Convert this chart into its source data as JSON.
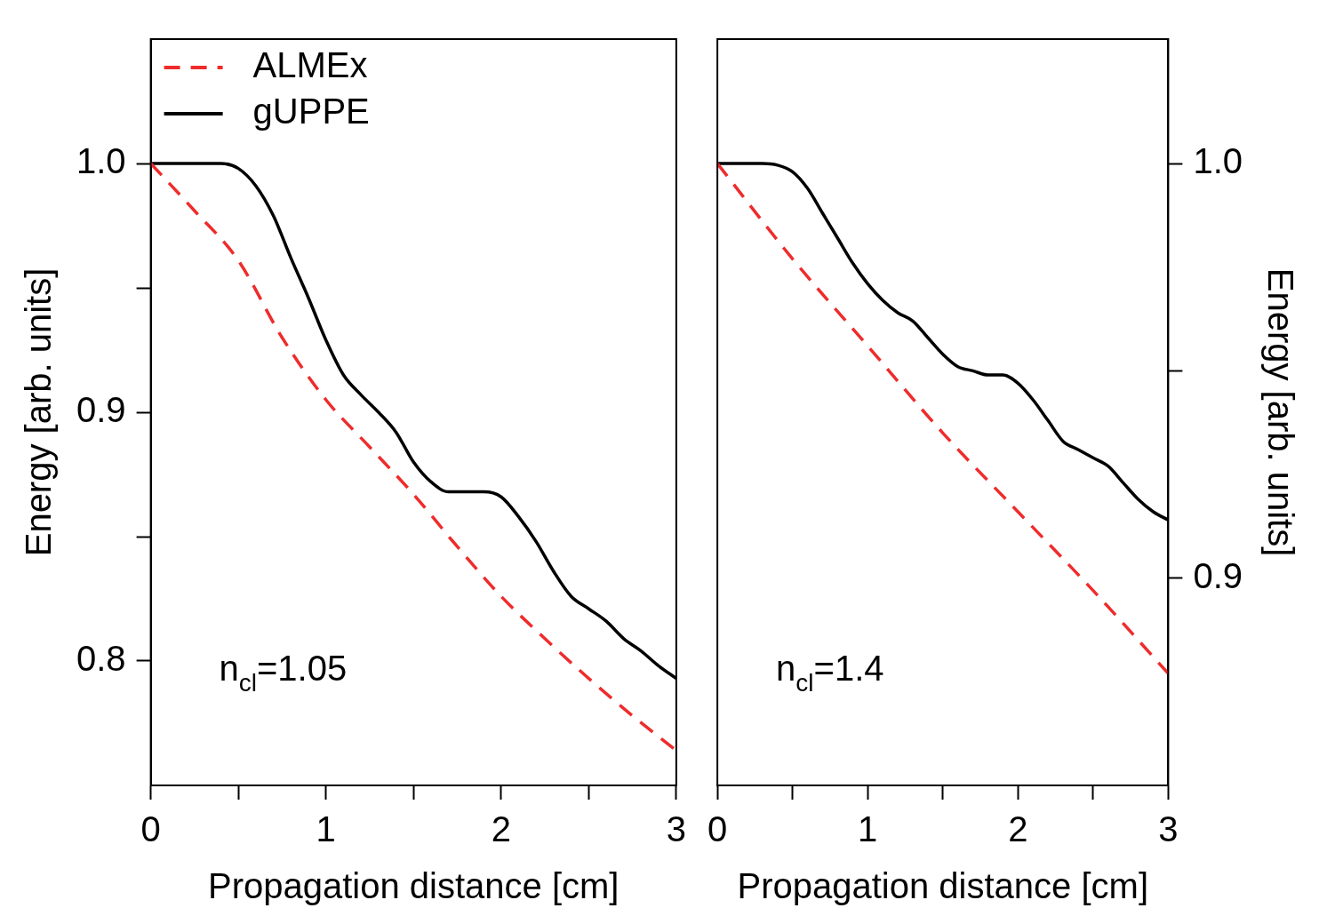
{
  "chart_data": [
    {
      "type": "line",
      "xlabel": "Propagation distance [cm]",
      "ylabel": "Energy [arb. units]",
      "xlim": [
        0,
        3
      ],
      "ylim": [
        0.75,
        1.05
      ],
      "xticks": [
        0,
        {
          "value": 0.5,
          "label": null
        },
        1,
        {
          "value": 1.5,
          "label": null
        },
        2,
        {
          "value": 2.5,
          "label": null
        },
        3
      ],
      "yticks": [
        0.8,
        {
          "value": 0.85,
          "label": null
        },
        0.9,
        {
          "value": 0.95,
          "label": null
        },
        {
          "value": 1,
          "label": "1.0"
        }
      ],
      "legend": "top left",
      "annotations": [
        "n$_{cl}$=1.05"
      ],
      "series": [
        {
          "name": "ALMEx",
          "color": "#ee2c2c",
          "line_style": "dashed",
          "x": [
            0,
            0.25,
            0.5,
            0.75,
            1,
            1.25,
            1.5,
            1.75,
            2,
            2.25,
            2.5,
            2.75,
            3
          ],
          "values": [
            1,
            0.981,
            0.961,
            0.93,
            0.905,
            0.886,
            0.867,
            0.846,
            0.826,
            0.809,
            0.793,
            0.778,
            0.764
          ]
        },
        {
          "name": "gUPPE",
          "color": "#000000",
          "line_style": "solid",
          "x": [
            0,
            0.2,
            0.4,
            0.5,
            0.6,
            0.7,
            0.8,
            0.9,
            1,
            1.1,
            1.2,
            1.3,
            1.4,
            1.5,
            1.6,
            1.7,
            1.8,
            1.9,
            2,
            2.1,
            2.2,
            2.3,
            2.4,
            2.5,
            2.6,
            2.7,
            2.8,
            2.9,
            3
          ],
          "values": [
            1,
            1,
            1,
            0.998,
            0.991,
            0.979,
            0.962,
            0.946,
            0.929,
            0.915,
            0.907,
            0.9,
            0.892,
            0.88,
            0.872,
            0.868,
            0.868,
            0.868,
            0.866,
            0.858,
            0.848,
            0.836,
            0.826,
            0.821,
            0.816,
            0.809,
            0.804,
            0.798,
            0.793
          ]
        }
      ]
    },
    {
      "type": "line",
      "xlabel": "Propagation distance [cm]",
      "y2label": "Energy [arb. units]",
      "xlim": [
        0,
        3
      ],
      "y2lim": [
        0.85,
        1.03
      ],
      "xticks": [
        0,
        {
          "value": 0.5,
          "label": null
        },
        1,
        {
          "value": 1.5,
          "label": null
        },
        2,
        {
          "value": 2.5,
          "label": null
        },
        3
      ],
      "y2ticks": [
        0.9,
        {
          "value": 0.95,
          "label": null
        },
        {
          "value": 1,
          "label": "1.0"
        }
      ],
      "annotations": [
        "n$_{cl}$=1.4"
      ],
      "series": [
        {
          "color": "#ee2c2c",
          "line_style": "dashed",
          "axis": "y2",
          "x": [
            0,
            0.5,
            1,
            1.5,
            2,
            2.5,
            3
          ],
          "values": [
            1,
            0.977,
            0.956,
            0.935,
            0.916,
            0.897,
            0.877
          ]
        },
        {
          "color": "#000000",
          "line_style": "solid",
          "axis": "y2",
          "x": [
            0,
            0.3,
            0.4,
            0.5,
            0.6,
            0.7,
            0.8,
            0.9,
            1,
            1.1,
            1.2,
            1.3,
            1.4,
            1.5,
            1.6,
            1.7,
            1.8,
            1.9,
            2,
            2.1,
            2.2,
            2.3,
            2.4,
            2.5,
            2.6,
            2.7,
            2.8,
            2.9,
            3
          ],
          "values": [
            1,
            1,
            0.9996,
            0.998,
            0.994,
            0.988,
            0.982,
            0.976,
            0.971,
            0.967,
            0.964,
            0.962,
            0.958,
            0.954,
            0.951,
            0.95,
            0.949,
            0.949,
            0.947,
            0.943,
            0.938,
            0.933,
            0.931,
            0.929,
            0.927,
            0.923,
            0.919,
            0.916,
            0.914
          ]
        }
      ]
    }
  ]
}
